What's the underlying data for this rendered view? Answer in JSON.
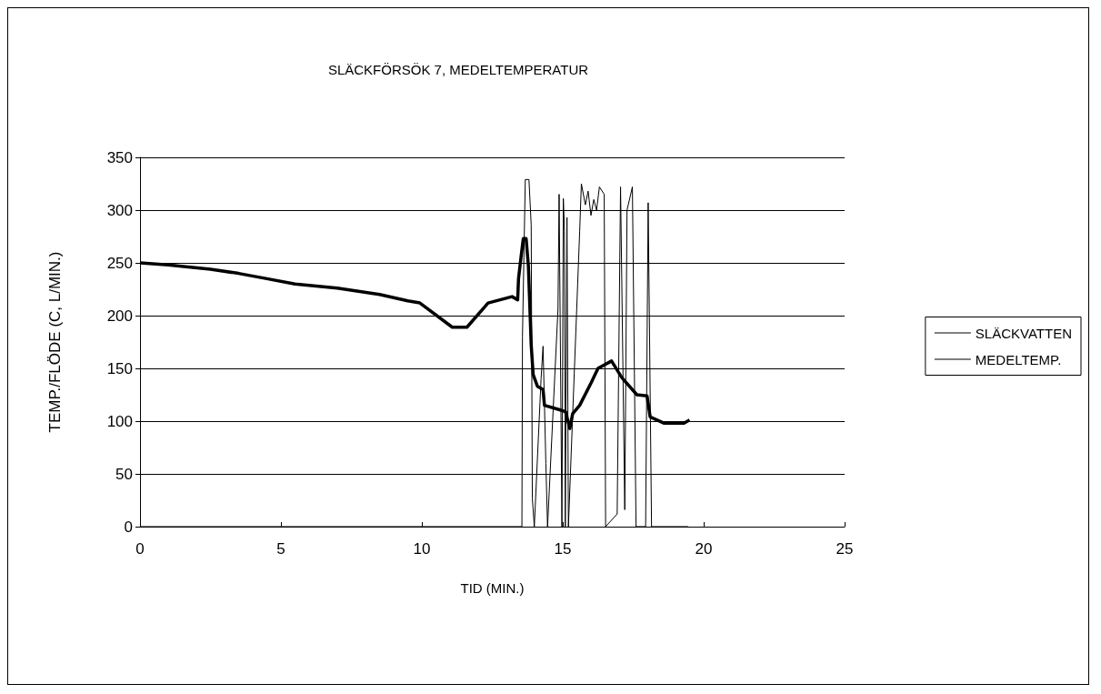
{
  "chart_data": {
    "type": "line",
    "title": "SLÄCKFÖRSÖK 7, MEDELTEMPERATUR",
    "xlabel": "TID (MIN.)",
    "ylabel": "TEMP./FLÖDE (C, L/MIN.)",
    "xlim": [
      0,
      25
    ],
    "xticks": [
      0,
      5,
      10,
      15,
      20,
      25
    ],
    "ylim": [
      0,
      350
    ],
    "yticks": [
      0,
      50,
      100,
      150,
      200,
      250,
      300,
      350
    ],
    "grid": "y",
    "legend": "right",
    "marker": "none",
    "series": [
      {
        "name": "SLÄCKVATTEN",
        "color": "#000000",
        "line_style": "solid",
        "x": [
          0,
          13.55,
          13.57,
          13.67,
          13.8,
          13.88,
          13.92,
          13.99,
          14.23,
          14.3,
          14.4,
          14.46,
          14.83,
          14.87,
          14.97,
          15.02,
          15.06,
          15.09,
          15.15,
          15.2,
          15.6,
          15.66,
          15.8,
          15.9,
          16.0,
          16.1,
          16.2,
          16.3,
          16.47,
          16.52,
          16.93,
          17.05,
          17.2,
          17.28,
          17.47,
          17.6,
          17.94,
          18.03,
          18.15,
          19.45
        ],
        "values": [
          0,
          0,
          180,
          329,
          329,
          286,
          27,
          0,
          140,
          171,
          60,
          0,
          206,
          315,
          0,
          311,
          280,
          0,
          293,
          0,
          280,
          325,
          305,
          318,
          295,
          310,
          300,
          322,
          315,
          0,
          12,
          322,
          16,
          300,
          322,
          0,
          0,
          307,
          0,
          0
        ]
      },
      {
        "name": "MEDELTEMP.",
        "color": "#000000",
        "line_style": "solid",
        "x": [
          0,
          1,
          2.5,
          3.5,
          4.5,
          5.5,
          7,
          8.5,
          9.5,
          9.93,
          11.08,
          11.6,
          12.35,
          13.2,
          13.4,
          13.43,
          13.53,
          13.6,
          13.7,
          13.78,
          13.88,
          13.95,
          14.1,
          14.3,
          14.35,
          14.86,
          15.1,
          15.25,
          15.35,
          15.6,
          16.0,
          16.25,
          16.73,
          17.1,
          17.63,
          17.99,
          18.1,
          18.6,
          19.3,
          19.5
        ],
        "values": [
          250,
          248,
          244,
          240,
          235,
          230,
          226,
          220,
          214,
          212,
          189,
          189,
          212,
          218,
          215,
          235,
          258,
          273,
          273,
          247,
          172,
          144,
          133,
          130,
          115,
          111,
          109,
          93,
          107,
          115,
          136,
          150,
          157,
          141,
          125,
          124,
          104,
          98,
          98,
          101
        ]
      }
    ]
  }
}
